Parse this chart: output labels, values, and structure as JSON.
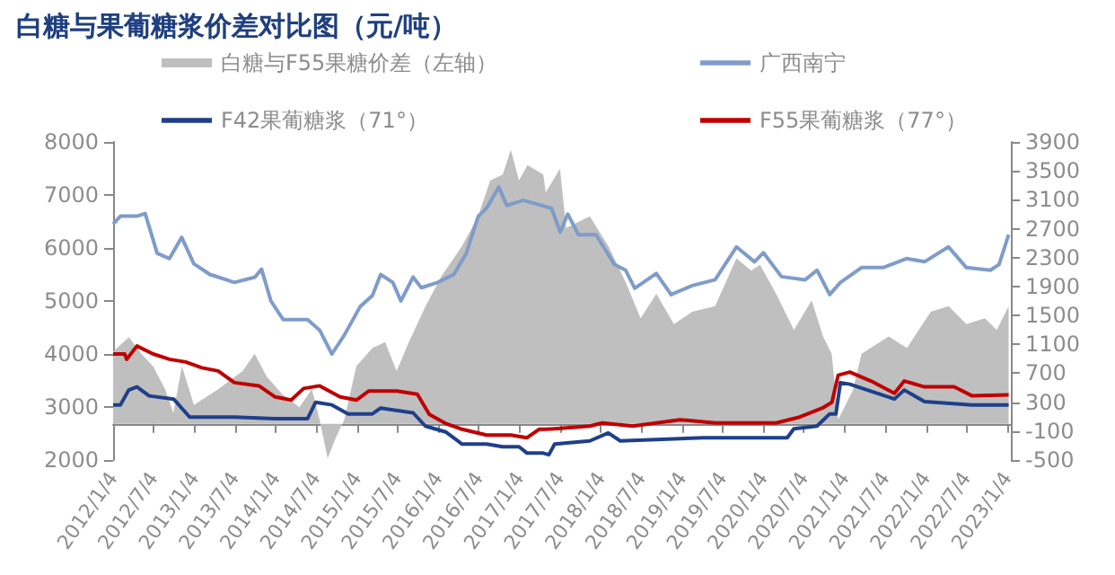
{
  "chart_data": {
    "type": "line",
    "title": "白糖与果葡糖浆价差对比图（元/吨）",
    "legend": "top",
    "marker": "none",
    "grid": false,
    "xlim": [
      "2012-01-04",
      "2023-01-20"
    ],
    "xticks": [
      {
        "value": "2012-01-04",
        "label": "2012/1/4"
      },
      {
        "value": "2012-07-04",
        "label": "2012/7/4"
      },
      {
        "value": "2013-01-04",
        "label": "2013/1/4"
      },
      {
        "value": "2013-07-04",
        "label": "2013/7/4"
      },
      {
        "value": "2014-01-04",
        "label": "2014/1/4"
      },
      {
        "value": "2014-07-04",
        "label": "2014/7/4"
      },
      {
        "value": "2015-01-04",
        "label": "2015/1/4"
      },
      {
        "value": "2015-07-04",
        "label": "2015/7/4"
      },
      {
        "value": "2016-01-04",
        "label": "2016/1/4"
      },
      {
        "value": "2016-07-04",
        "label": "2016/7/4"
      },
      {
        "value": "2017-01-04",
        "label": "2017/1/4"
      },
      {
        "value": "2017-07-04",
        "label": "2017/7/4"
      },
      {
        "value": "2018-01-04",
        "label": "2018/1/4"
      },
      {
        "value": "2018-07-04",
        "label": "2018/7/4"
      },
      {
        "value": "2019-01-04",
        "label": "2019/1/4"
      },
      {
        "value": "2019-07-04",
        "label": "2019/7/4"
      },
      {
        "value": "2020-01-04",
        "label": "2020/1/4"
      },
      {
        "value": "2020-07-04",
        "label": "2020/7/4"
      },
      {
        "value": "2021-01-04",
        "label": "2021/1/4"
      },
      {
        "value": "2021-07-04",
        "label": "2021/7/4"
      },
      {
        "value": "2022-01-04",
        "label": "2022/1/4"
      },
      {
        "value": "2022-07-04",
        "label": "2022/7/4"
      },
      {
        "value": "2023-01-04",
        "label": "2023/1/4"
      }
    ],
    "ylim": [
      2000,
      8000
    ],
    "yticks": [
      2000,
      3000,
      4000,
      5000,
      6000,
      7000,
      8000
    ],
    "y2lim": [
      -500,
      3900
    ],
    "y2ticks": [
      -500,
      -100,
      300,
      700,
      1100,
      1500,
      1900,
      2300,
      2700,
      3100,
      3500,
      3900
    ],
    "series": [
      {
        "name": "白糖与F55果糖价差（左轴）",
        "type": "area",
        "axis": "y2",
        "color": "#bfbfbf",
        "x": [
          "2012-01-04",
          "2012-03-15",
          "2012-05-10",
          "2012-07-01",
          "2012-08-25",
          "2012-10-01",
          "2012-11-08",
          "2013-01-01",
          "2013-04-20",
          "2013-08-08",
          "2013-10-01",
          "2013-11-25",
          "2014-02-05",
          "2014-04-20",
          "2014-06-15",
          "2014-07-20",
          "2014-08-25",
          "2014-10-01",
          "2014-11-08",
          "2015-01-01",
          "2015-03-15",
          "2015-05-10",
          "2015-07-01",
          "2015-08-25",
          "2015-11-08",
          "2016-01-20",
          "2016-04-20",
          "2016-07-01",
          "2016-08-25",
          "2016-10-20",
          "2016-11-25",
          "2017-01-01",
          "2017-02-08",
          "2017-04-20",
          "2017-05-01",
          "2017-07-04",
          "2017-08-01",
          "2017-11-15",
          "2018-02-06",
          "2018-04-25",
          "2018-07-01",
          "2018-09-10",
          "2018-11-28",
          "2019-02-18",
          "2019-06-01",
          "2019-09-05",
          "2019-11-10",
          "2019-12-20",
          "2020-03-01",
          "2020-05-20",
          "2020-08-08",
          "2020-09-28",
          "2020-11-06",
          "2020-12-05",
          "2021-02-10",
          "2021-03-20",
          "2021-07-20",
          "2021-10-10",
          "2022-01-25",
          "2022-04-15",
          "2022-07-04",
          "2022-09-25",
          "2022-11-18",
          "2023-01-10"
        ],
        "values": [
          1000,
          1200,
          970,
          800,
          480,
          150,
          800,
          260,
          480,
          730,
          970,
          650,
          400,
          230,
          480,
          60,
          -480,
          -190,
          60,
          800,
          1050,
          1130,
          730,
          1130,
          1630,
          2050,
          2460,
          2870,
          3370,
          3450,
          3790,
          3370,
          3580,
          3450,
          3200,
          3530,
          2710,
          2870,
          2460,
          1960,
          1460,
          1800,
          1380,
          1550,
          1630,
          2290,
          2120,
          2200,
          1800,
          1300,
          1710,
          1210,
          970,
          60,
          470,
          970,
          1210,
          1050,
          1550,
          1630,
          1380,
          1460,
          1300,
          1630
        ]
      },
      {
        "name": "广西南宁",
        "color": "#7f9cc9",
        "x": [
          "2012-01-04",
          "2012-02-06",
          "2012-04-20",
          "2012-05-27",
          "2012-07-20",
          "2012-09-13",
          "2012-11-07",
          "2013-01-01",
          "2013-03-14",
          "2013-07-02",
          "2013-10-02",
          "2013-11-01",
          "2013-12-13",
          "2014-02-06",
          "2014-05-27",
          "2014-07-20",
          "2014-09-13",
          "2014-11-07",
          "2015-01-19",
          "2015-03-14",
          "2015-04-20",
          "2015-06-14",
          "2015-07-20",
          "2015-09-13",
          "2015-10-20",
          "2016-01-01",
          "2016-03-14",
          "2016-05-09",
          "2016-07-02",
          "2016-08-08",
          "2016-10-02",
          "2016-11-07",
          "2017-01-19",
          "2017-05-27",
          "2017-07-05",
          "2017-08-08",
          "2017-09-25",
          "2017-12-13",
          "2018-03-05",
          "2018-04-25",
          "2018-06-05",
          "2018-09-10",
          "2018-11-15",
          "2019-02-18",
          "2019-06-01",
          "2019-09-05",
          "2019-11-25",
          "2020-01-04",
          "2020-03-25",
          "2020-07-10",
          "2020-09-01",
          "2020-10-28",
          "2020-12-15",
          "2021-03-20",
          "2021-06-25",
          "2021-10-08",
          "2021-12-28",
          "2022-04-15",
          "2022-07-04",
          "2022-10-20",
          "2022-11-28",
          "2023-01-10"
        ],
        "values": [
          6450,
          6600,
          6600,
          6650,
          5900,
          5800,
          6200,
          5700,
          5500,
          5350,
          5450,
          5600,
          5000,
          4650,
          4650,
          4450,
          4000,
          4350,
          4900,
          5100,
          5500,
          5350,
          5000,
          5450,
          5250,
          5350,
          5500,
          5900,
          6600,
          6750,
          7150,
          6800,
          6900,
          6750,
          6300,
          6640,
          6250,
          6250,
          5690,
          5580,
          5240,
          5520,
          5120,
          5290,
          5400,
          6020,
          5740,
          5910,
          5460,
          5400,
          5580,
          5120,
          5350,
          5630,
          5630,
          5800,
          5740,
          6020,
          5630,
          5580,
          5690,
          6250
        ]
      },
      {
        "name": "F42果葡糖浆（71°）",
        "color": "#1f3f8a",
        "x": [
          "2012-01-04",
          "2012-02-06",
          "2012-03-14",
          "2012-04-20",
          "2012-06-14",
          "2012-10-02",
          "2012-12-13",
          "2013-07-02",
          "2014-01-01",
          "2014-05-27",
          "2014-07-02",
          "2014-09-13",
          "2014-11-25",
          "2015-03-14",
          "2015-04-20",
          "2015-09-13",
          "2015-11-07",
          "2016-02-06",
          "2016-04-20",
          "2016-08-08",
          "2016-10-20",
          "2017-01-01",
          "2017-02-06",
          "2017-04-20",
          "2017-05-15",
          "2017-06-10",
          "2017-11-15",
          "2018-02-06",
          "2018-04-01",
          "2019-04-10",
          "2019-08-20",
          "2020-04-20",
          "2020-05-20",
          "2020-09-01",
          "2020-10-28",
          "2020-11-25",
          "2020-12-15",
          "2021-01-26",
          "2021-08-15",
          "2021-09-28",
          "2021-12-28",
          "2022-07-30",
          "2023-01-10"
        ],
        "values": [
          3040,
          3040,
          3320,
          3380,
          3210,
          3150,
          2810,
          2810,
          2780,
          2780,
          3090,
          3040,
          2870,
          2870,
          2980,
          2890,
          2640,
          2530,
          2300,
          2300,
          2250,
          2250,
          2130,
          2130,
          2100,
          2300,
          2360,
          2510,
          2360,
          2420,
          2420,
          2420,
          2590,
          2640,
          2870,
          2870,
          3460,
          3430,
          3150,
          3320,
          3100,
          3040,
          3040
        ]
      },
      {
        "name": "F55果葡糖浆（77°）",
        "color": "#c00000",
        "x": [
          "2012-01-04",
          "2012-02-25",
          "2012-03-05",
          "2012-04-20",
          "2012-07-02",
          "2012-09-13",
          "2012-11-25",
          "2013-02-06",
          "2013-04-20",
          "2013-07-02",
          "2013-10-20",
          "2014-01-01",
          "2014-03-14",
          "2014-05-09",
          "2014-07-20",
          "2014-10-20",
          "2015-01-01",
          "2015-02-25",
          "2015-07-02",
          "2015-10-02",
          "2015-11-25",
          "2016-02-06",
          "2016-04-20",
          "2016-08-08",
          "2016-11-25",
          "2017-02-06",
          "2017-04-01",
          "2017-05-01",
          "2017-06-10",
          "2017-11-15",
          "2018-01-10",
          "2018-05-27",
          "2018-12-25",
          "2019-06-01",
          "2020-03-01",
          "2020-06-15",
          "2020-09-25",
          "2020-11-07",
          "2020-12-05",
          "2021-01-26",
          "2021-05-01",
          "2021-08-15",
          "2021-09-28",
          "2021-12-28",
          "2022-05-10",
          "2022-07-30",
          "2023-01-10"
        ],
        "values": [
          4000,
          4000,
          3900,
          4150,
          4000,
          3900,
          3850,
          3740,
          3680,
          3460,
          3400,
          3190,
          3130,
          3350,
          3400,
          3190,
          3130,
          3300,
          3300,
          3240,
          2860,
          2690,
          2580,
          2470,
          2470,
          2420,
          2580,
          2580,
          2590,
          2640,
          2700,
          2640,
          2760,
          2700,
          2700,
          2810,
          2980,
          3090,
          3600,
          3660,
          3490,
          3260,
          3490,
          3380,
          3380,
          3210,
          3230
        ]
      }
    ]
  }
}
